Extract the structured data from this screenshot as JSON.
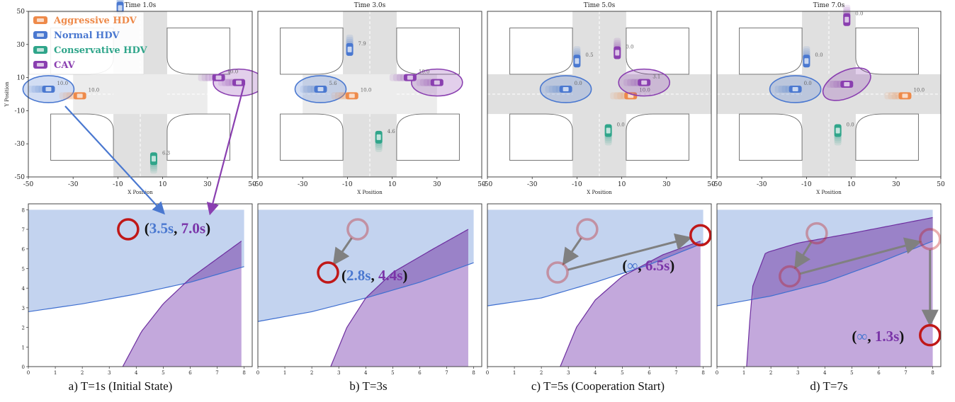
{
  "legend": {
    "items": [
      {
        "label": "Aggressive HDV",
        "color": "#ee8a4a"
      },
      {
        "label": "Normal HDV",
        "color": "#4a78d0"
      },
      {
        "label": "Conservative HDV",
        "color": "#2fa58a"
      },
      {
        "label": "CAV",
        "color": "#8a3fb0"
      }
    ]
  },
  "colors": {
    "aggressive": "#ee8a4a",
    "normal": "#4a78d0",
    "conservative": "#2fa58a",
    "cav": "#8a3fb0",
    "road": "#e0e0e0",
    "blue_region": "#c3d3ef",
    "purple_region": "#c3a8dc",
    "overlap_region": "#9a82c8",
    "circle": "#c01818",
    "arrow": "#808080"
  },
  "top_axes": {
    "xlabel": "X Position",
    "ylabel": "Y Position",
    "xticks": [
      -50,
      -30,
      -10,
      10,
      30,
      50
    ],
    "yticks": [
      -50,
      -30,
      -10,
      10,
      30,
      50
    ],
    "xlim": [
      -50,
      50
    ],
    "ylim": [
      -50,
      50
    ]
  },
  "bottom_axes": {
    "xticks": [
      0,
      1,
      2,
      3,
      4,
      5,
      6,
      7,
      8
    ],
    "yticks": [
      0,
      1,
      2,
      3,
      4,
      5,
      6,
      7,
      8
    ],
    "xlim": [
      0,
      8.3
    ],
    "ylim": [
      0,
      8.3
    ]
  },
  "captions": [
    "a) T=1s (Initial State)",
    "b) T=3s",
    "c) T=5s (Cooperation Start)",
    "d) T=7s"
  ],
  "chart_data": [
    {
      "type": "scatter",
      "title": "Time 1.0s",
      "road": "vertical",
      "vehicles": [
        {
          "type": "normal",
          "x": -41,
          "y": 3,
          "dir": "h",
          "label": "10.0",
          "ellipse": true
        },
        {
          "type": "aggressive",
          "x": -27,
          "y": -1,
          "dir": "h",
          "label": "10.0"
        },
        {
          "type": "normal",
          "x": -9,
          "y": 52,
          "dir": "v",
          "label": ""
        },
        {
          "type": "conservative",
          "x": 6,
          "y": -39,
          "dir": "v",
          "label": "6.3"
        },
        {
          "type": "cav",
          "x": 44,
          "y": 7,
          "dir": "h",
          "label": "",
          "ellipse": true
        },
        {
          "type": "cav",
          "x": 35,
          "y": 10,
          "dir": "h",
          "label": "10.0"
        }
      ]
    },
    {
      "type": "scatter",
      "title": "Time 3.0s",
      "road": "vertical",
      "vehicles": [
        {
          "type": "normal",
          "x": -22,
          "y": 3,
          "dir": "h",
          "label": "5.6",
          "ellipse": true
        },
        {
          "type": "aggressive",
          "x": -8,
          "y": -1,
          "dir": "h",
          "label": "10.0"
        },
        {
          "type": "normal",
          "x": -9,
          "y": 27,
          "dir": "v",
          "label": "7.9"
        },
        {
          "type": "conservative",
          "x": 4,
          "y": -26,
          "dir": "v",
          "label": "4.6"
        },
        {
          "type": "cav",
          "x": 30,
          "y": 7,
          "dir": "h",
          "label": "",
          "ellipse": true
        },
        {
          "type": "cav",
          "x": 18,
          "y": 10,
          "dir": "h",
          "label": "10.0"
        }
      ]
    },
    {
      "type": "scatter",
      "title": "Time 5.0s",
      "road": "both",
      "vehicles": [
        {
          "type": "normal",
          "x": -15,
          "y": 3,
          "dir": "h",
          "label": "0.0",
          "ellipse": true
        },
        {
          "type": "normal",
          "x": -10,
          "y": 20,
          "dir": "v",
          "label": "0.5"
        },
        {
          "type": "aggressive",
          "x": 14,
          "y": -1,
          "dir": "h",
          "label": "10.0"
        },
        {
          "type": "conservative",
          "x": 4,
          "y": -22,
          "dir": "v",
          "label": "0.0"
        },
        {
          "type": "cav",
          "x": 8,
          "y": 25,
          "dir": "v",
          "label": "0.0"
        },
        {
          "type": "cav",
          "x": 20,
          "y": 7,
          "dir": "h",
          "label": "3.1",
          "ellipse": true
        }
      ]
    },
    {
      "type": "scatter",
      "title": "Time 7.0s",
      "road": "both",
      "vehicles": [
        {
          "type": "normal",
          "x": -15,
          "y": 3,
          "dir": "h",
          "label": "0.0",
          "ellipse": true
        },
        {
          "type": "normal",
          "x": -10,
          "y": 20,
          "dir": "v",
          "label": "0.0"
        },
        {
          "type": "aggressive",
          "x": 34,
          "y": -1,
          "dir": "h",
          "label": "10.0"
        },
        {
          "type": "conservative",
          "x": 4,
          "y": -22,
          "dir": "v",
          "label": "0.0"
        },
        {
          "type": "cav",
          "x": 8,
          "y": 45,
          "dir": "v",
          "label": "0.0"
        },
        {
          "type": "cav",
          "x": 8,
          "y": 6,
          "dir": "h",
          "label": "",
          "ellipse": true
        }
      ]
    },
    {
      "type": "area",
      "label": "(3.5s, 7.0s)",
      "label_blue": "3.5s",
      "label_purple": "7.0s",
      "blue_curve": [
        [
          0,
          2.8
        ],
        [
          2,
          3.2
        ],
        [
          4,
          3.7
        ],
        [
          6,
          4.3
        ],
        [
          8,
          5.1
        ]
      ],
      "purple_curve": [
        [
          3.5,
          0
        ],
        [
          4.2,
          1.8
        ],
        [
          5,
          3.2
        ],
        [
          6,
          4.5
        ],
        [
          7,
          5.5
        ],
        [
          7.9,
          6.4
        ]
      ],
      "circles": [
        {
          "x": 3.7,
          "y": 7.0
        }
      ],
      "arrows": []
    },
    {
      "type": "area",
      "label": "(2.8s, 4.4s)",
      "label_blue": "2.8s",
      "label_purple": "4.4s",
      "blue_curve": [
        [
          0,
          2.3
        ],
        [
          2,
          2.8
        ],
        [
          4,
          3.5
        ],
        [
          6,
          4.3
        ],
        [
          8,
          5.3
        ]
      ],
      "purple_curve": [
        [
          2.7,
          0
        ],
        [
          3.3,
          2.0
        ],
        [
          4,
          3.5
        ],
        [
          5,
          4.8
        ],
        [
          6.5,
          6.0
        ],
        [
          7.8,
          7.0
        ]
      ],
      "circles": [
        {
          "x": 3.7,
          "y": 7.0,
          "faded": true
        },
        {
          "x": 2.6,
          "y": 4.8
        }
      ],
      "arrows": [
        [
          [
            3.7,
            7.0
          ],
          [
            2.6,
            4.8
          ]
        ]
      ]
    },
    {
      "type": "area",
      "label": "(∞, 6.5s)",
      "label_blue": "∞",
      "label_purple": "6.5s",
      "blue_curve": [
        [
          0,
          3.1
        ],
        [
          2,
          3.5
        ],
        [
          4,
          4.3
        ],
        [
          6,
          5.2
        ],
        [
          8,
          6.3
        ]
      ],
      "purple_curve": [
        [
          2.7,
          0
        ],
        [
          3.3,
          2.0
        ],
        [
          4,
          3.4
        ],
        [
          5,
          4.6
        ],
        [
          6.5,
          5.7
        ],
        [
          7.9,
          6.4
        ]
      ],
      "circles": [
        {
          "x": 3.7,
          "y": 7.0,
          "faded": true
        },
        {
          "x": 2.6,
          "y": 4.8,
          "faded": true
        },
        {
          "x": 7.9,
          "y": 6.7
        }
      ],
      "arrows": [
        [
          [
            3.7,
            7.0
          ],
          [
            2.6,
            4.8
          ]
        ],
        [
          [
            2.6,
            4.8
          ],
          [
            7.9,
            6.7
          ]
        ]
      ]
    },
    {
      "type": "area",
      "label": "(∞, 1.3s)",
      "label_blue": "∞",
      "label_purple": "1.3s",
      "blue_curve": [
        [
          0,
          3.1
        ],
        [
          2,
          3.6
        ],
        [
          4,
          4.3
        ],
        [
          6,
          5.3
        ],
        [
          8,
          6.4
        ]
      ],
      "purple_curve": [
        [
          1.1,
          0
        ],
        [
          1.3,
          4.0
        ],
        [
          1.8,
          5.8
        ],
        [
          3,
          6.3
        ],
        [
          5,
          6.8
        ],
        [
          8,
          7.6
        ]
      ],
      "circles": [
        {
          "x": 3.7,
          "y": 6.8,
          "faded": true
        },
        {
          "x": 2.7,
          "y": 4.6,
          "faded": true
        },
        {
          "x": 7.9,
          "y": 6.5,
          "faded": true
        },
        {
          "x": 7.9,
          "y": 1.6
        }
      ],
      "arrows": [
        [
          [
            3.7,
            6.8
          ],
          [
            2.7,
            4.6
          ]
        ],
        [
          [
            2.7,
            4.6
          ],
          [
            7.9,
            6.5
          ]
        ],
        [
          [
            7.9,
            6.5
          ],
          [
            7.9,
            1.6
          ]
        ]
      ]
    }
  ]
}
